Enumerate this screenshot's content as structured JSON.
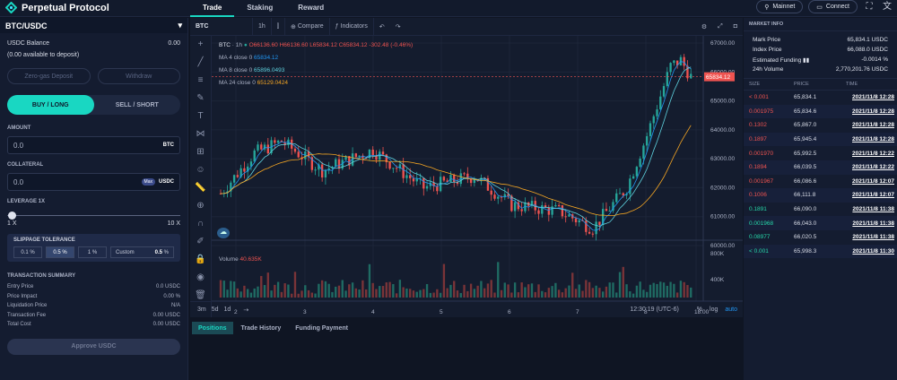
{
  "brand": {
    "name": "Perpetual Protocol"
  },
  "nav": {
    "tabs": [
      "Trade",
      "Staking",
      "Reward"
    ]
  },
  "top": {
    "network": "Mainnet",
    "connect": "Connect"
  },
  "left": {
    "pair": "BTC/USDC",
    "balance_label": "USDC Balance",
    "balance_value": "0.00",
    "available": "(0.00 available to deposit)",
    "zero_gas": "Zero-gas Deposit",
    "withdraw": "Withdraw",
    "buy": "BUY / LONG",
    "sell": "SELL / SHORT",
    "amount_label": "AMOUNT",
    "amount_value": "0.0",
    "amount_unit": "BTC",
    "collateral_label": "COLLATERAL",
    "collateral_value": "0.0",
    "collateral_max": "Max",
    "collateral_unit": "USDC",
    "leverage_label": "LEVERAGE 1X",
    "leverage_min": "1 X",
    "leverage_max": "10 X",
    "slippage_label": "SLIPPAGE TOLERANCE",
    "slippage_opts": [
      "0.1 %",
      "0.5 %",
      "1 %"
    ],
    "custom_label": "Custom",
    "custom_value": "0.5",
    "custom_unit": "%",
    "summary_title": "TRANSACTION SUMMARY",
    "summary": [
      [
        "Entry Price",
        "0.0 USDC"
      ],
      [
        "Price Impact",
        "0.00 %"
      ],
      [
        "Liquidation Price",
        "N/A"
      ],
      [
        "Transaction Fee",
        "0.00 USDC"
      ],
      [
        "Total Cost",
        "0.00 USDC"
      ]
    ],
    "approve": "Approve USDC"
  },
  "chart": {
    "symbol": "BTC",
    "interval": "1h",
    "compare": "Compare",
    "indicators": "Indicators",
    "ohlc": {
      "o": "O66136.60",
      "h": "H66136.60",
      "l": "L65834.12",
      "c": "C65834.12",
      "chg": "-302.48 (-0.46%)"
    },
    "ma4": {
      "label": "MA 4 close 0",
      "value": "65834.12"
    },
    "ma8": {
      "label": "MA 8 close 0",
      "value": "65896.0493"
    },
    "ma24": {
      "label": "MA 24 close 0",
      "value": "65129.0424"
    },
    "volume_label": "Volume",
    "volume_value": "40.635K",
    "price_ticks": [
      "67000.00",
      "66000.00",
      "65000.00",
      "64000.00",
      "63000.00",
      "62000.00",
      "61000.00",
      "60000.00"
    ],
    "vol_ticks": [
      "800K",
      "400K"
    ],
    "x_ticks": [
      "2",
      "3",
      "4",
      "5",
      "6",
      "7",
      "8",
      "18:00"
    ],
    "current_price": "65834.12",
    "ranges": [
      "3m",
      "5d",
      "1d"
    ],
    "time": "12:30:19 (UTC-6)",
    "pct": "%",
    "log": "log",
    "auto": "auto",
    "colors": {
      "up": "#26a69a",
      "down": "#ef5350",
      "ma4": "#2196f3",
      "ma8": "#5ed1de",
      "ma24": "#f5a623"
    }
  },
  "chart_data": {
    "type": "candlestick",
    "x": [
      "2",
      "3",
      "4",
      "5",
      "6",
      "7",
      "8"
    ],
    "ylim": [
      60000,
      67000
    ]
  },
  "bottom": {
    "tabs": [
      "Positions",
      "Trade History",
      "Funding Payment"
    ]
  },
  "market": {
    "title": "MARKET INFO",
    "info": [
      [
        "Mark Price",
        "65,834.1 USDC"
      ],
      [
        "Index Price",
        "66,088.0 USDC"
      ],
      [
        "Estimated Funding",
        "-0.0014 %"
      ],
      [
        "24h Volume",
        "2,770,201.76 USDC"
      ]
    ],
    "headers": [
      "SIZE",
      "PRICE",
      "TIME"
    ],
    "trades": [
      {
        "size": "< 0.001",
        "price": "65,834.1",
        "time": "2021/11/8 12:28",
        "side": "sell"
      },
      {
        "size": "0.001975",
        "price": "65,834.6",
        "time": "2021/11/8 12:28",
        "side": "sell"
      },
      {
        "size": "0.1302",
        "price": "65,867.0",
        "time": "2021/11/8 12:28",
        "side": "sell"
      },
      {
        "size": "0.1897",
        "price": "65,945.4",
        "time": "2021/11/8 12:28",
        "side": "sell"
      },
      {
        "size": "0.001970",
        "price": "65,992.5",
        "time": "2021/11/8 12:22",
        "side": "sell"
      },
      {
        "size": "0.1894",
        "price": "66,039.5",
        "time": "2021/11/8 12:22",
        "side": "sell"
      },
      {
        "size": "0.001967",
        "price": "66,086.6",
        "time": "2021/11/8 12:07",
        "side": "sell"
      },
      {
        "size": "0.1006",
        "price": "66,111.8",
        "time": "2021/11/8 12:07",
        "side": "sell"
      },
      {
        "size": "0.1891",
        "price": "66,090.0",
        "time": "2021/11/8 11:38",
        "side": "buy"
      },
      {
        "size": "0.001968",
        "price": "66,043.0",
        "time": "2021/11/8 11:38",
        "side": "buy"
      },
      {
        "size": "0.08977",
        "price": "66,020.5",
        "time": "2021/11/8 11:38",
        "side": "buy"
      },
      {
        "size": "< 0.001",
        "price": "65,998.3",
        "time": "2021/11/8 11:30",
        "side": "buy"
      }
    ]
  }
}
